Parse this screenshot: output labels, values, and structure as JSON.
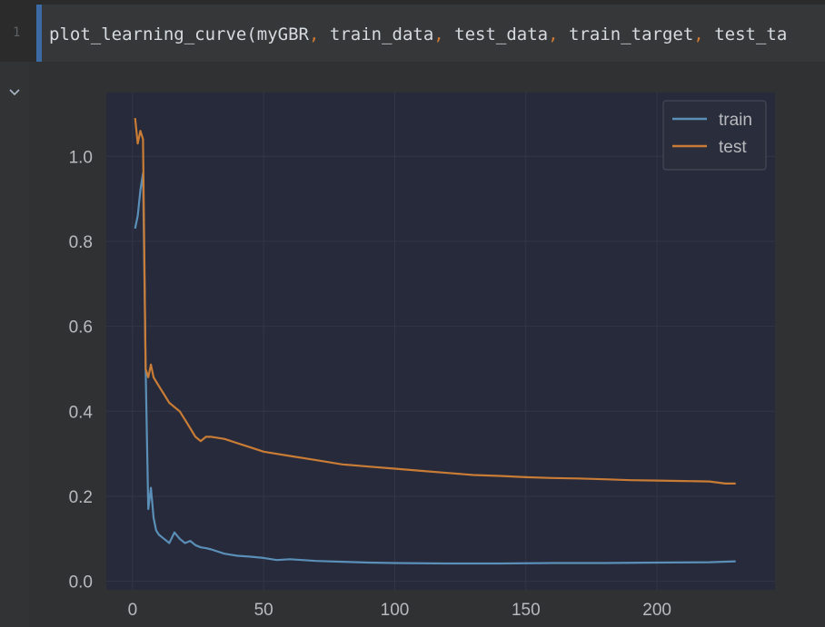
{
  "editor": {
    "line_number": "1",
    "code_tokens": [
      {
        "t": "plot_learning_curve(myGBR",
        "c": "plain"
      },
      {
        "t": ",",
        "c": "comma"
      },
      {
        "t": " train_data",
        "c": "plain"
      },
      {
        "t": ",",
        "c": "comma"
      },
      {
        "t": " test_data",
        "c": "plain"
      },
      {
        "t": ",",
        "c": "comma"
      },
      {
        "t": " train_target",
        "c": "plain"
      },
      {
        "t": ",",
        "c": "comma"
      },
      {
        "t": " test_ta",
        "c": "plain"
      }
    ]
  },
  "output": {
    "toggle_icon": "chevron-down-icon"
  },
  "colors": {
    "background": "#2b2b2b",
    "code_bg": "#353739",
    "plot_bg": "#272a3a",
    "train": "#5a8fb8",
    "test": "#c97c35",
    "grid": "#333647",
    "tick_text": "#b8babd"
  },
  "chart_data": {
    "type": "line",
    "title": "",
    "xlabel": "",
    "ylabel": "",
    "xlim": [
      -10,
      245
    ],
    "ylim": [
      -0.02,
      1.15
    ],
    "xticks": [
      0,
      50,
      100,
      150,
      200
    ],
    "yticks": [
      0.0,
      0.2,
      0.4,
      0.6,
      0.8,
      1.0
    ],
    "xtick_labels": [
      "0",
      "50",
      "100",
      "150",
      "200"
    ],
    "ytick_labels": [
      "0.0",
      "0.2",
      "0.4",
      "0.6",
      "0.8",
      "1.0"
    ],
    "grid": true,
    "legend": "top-right",
    "series": [
      {
        "name": "train",
        "color": "#5a8fb8",
        "x": [
          1,
          2,
          3,
          4,
          5,
          6,
          7,
          8,
          9,
          10,
          12,
          14,
          16,
          18,
          20,
          22,
          24,
          26,
          28,
          30,
          35,
          40,
          45,
          50,
          55,
          60,
          70,
          80,
          90,
          100,
          120,
          140,
          160,
          180,
          200,
          220,
          230
        ],
        "y": [
          0.83,
          0.86,
          0.92,
          0.96,
          0.5,
          0.17,
          0.22,
          0.15,
          0.12,
          0.11,
          0.1,
          0.09,
          0.115,
          0.1,
          0.09,
          0.095,
          0.085,
          0.08,
          0.078,
          0.075,
          0.065,
          0.06,
          0.058,
          0.055,
          0.05,
          0.052,
          0.048,
          0.046,
          0.044,
          0.043,
          0.042,
          0.042,
          0.043,
          0.043,
          0.044,
          0.045,
          0.047
        ]
      },
      {
        "name": "test",
        "color": "#c97c35",
        "x": [
          1,
          2,
          3,
          4,
          5,
          6,
          7,
          8,
          9,
          10,
          12,
          14,
          16,
          18,
          20,
          22,
          24,
          26,
          28,
          30,
          35,
          40,
          45,
          50,
          60,
          70,
          80,
          90,
          100,
          110,
          120,
          130,
          140,
          150,
          160,
          170,
          180,
          190,
          200,
          210,
          220,
          226,
          230
        ],
        "y": [
          1.09,
          1.03,
          1.06,
          1.04,
          0.5,
          0.48,
          0.51,
          0.48,
          0.47,
          0.46,
          0.44,
          0.42,
          0.41,
          0.4,
          0.38,
          0.36,
          0.34,
          0.33,
          0.34,
          0.34,
          0.335,
          0.325,
          0.315,
          0.305,
          0.295,
          0.285,
          0.275,
          0.27,
          0.265,
          0.26,
          0.255,
          0.25,
          0.248,
          0.245,
          0.243,
          0.242,
          0.24,
          0.238,
          0.237,
          0.236,
          0.235,
          0.23,
          0.23
        ]
      }
    ]
  }
}
